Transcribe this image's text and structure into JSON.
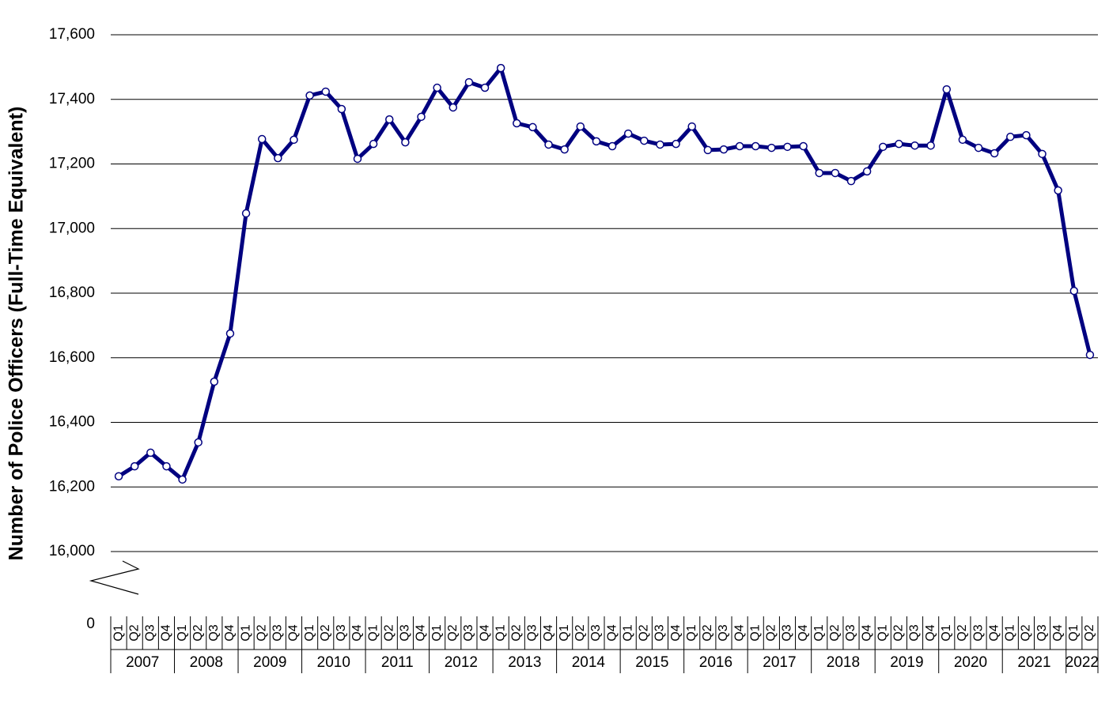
{
  "chart_data": {
    "type": "line",
    "y_label": "Number of Police Officers (Full-Time Equivalent)",
    "categories": [
      "Q1",
      "Q2",
      "Q3",
      "Q4",
      "Q1",
      "Q2",
      "Q3",
      "Q4",
      "Q1",
      "Q2",
      "Q3",
      "Q4",
      "Q1",
      "Q2",
      "Q3",
      "Q4",
      "Q1",
      "Q2",
      "Q3",
      "Q4",
      "Q1",
      "Q2",
      "Q3",
      "Q4",
      "Q1",
      "Q2",
      "Q3",
      "Q4",
      "Q1",
      "Q2",
      "Q3",
      "Q4",
      "Q1",
      "Q2",
      "Q3",
      "Q4",
      "Q1",
      "Q2",
      "Q3",
      "Q4",
      "Q1",
      "Q2",
      "Q3",
      "Q4",
      "Q1",
      "Q2",
      "Q3",
      "Q4",
      "Q1",
      "Q2",
      "Q3",
      "Q4",
      "Q1",
      "Q2",
      "Q3",
      "Q4",
      "Q1",
      "Q2",
      "Q3",
      "Q4",
      "Q1",
      "Q2"
    ],
    "years": [
      "2007",
      "2008",
      "2009",
      "2010",
      "2011",
      "2012",
      "2013",
      "2014",
      "2015",
      "2016",
      "2017",
      "2018",
      "2019",
      "2020",
      "2021",
      "2022"
    ],
    "color": "#000080",
    "values": [
      16233,
      16264,
      16306,
      16264,
      16223,
      16338,
      16526,
      16675,
      17047,
      17277,
      17218,
      17275,
      17412,
      17424,
      17370,
      17216,
      17262,
      17338,
      17267,
      17346,
      17436,
      17375,
      17453,
      17436,
      17497,
      17326,
      17314,
      17260,
      17245,
      17316,
      17270,
      17255,
      17294,
      17272,
      17260,
      17262,
      17316,
      17243,
      17245,
      17255,
      17255,
      17250,
      17253,
      17255,
      17172,
      17172,
      17147,
      17177,
      17253,
      17262,
      17257,
      17257,
      17431,
      17275,
      17250,
      17233,
      17284,
      17289,
      17231,
      17118,
      16807,
      16609
    ],
    "ylim": [
      0,
      17600
    ],
    "y_break": [
      0,
      16000
    ],
    "yticks": [
      0,
      {
        "value": 16000,
        "label": "16,000"
      },
      {
        "value": 16200,
        "label": "16,200"
      },
      {
        "value": 16400,
        "label": "16,400"
      },
      {
        "value": 16600,
        "label": "16,600"
      },
      {
        "value": 16800,
        "label": "16,800"
      },
      {
        "value": 17000,
        "label": "17,000"
      },
      {
        "value": 17200,
        "label": "17,200"
      },
      {
        "value": 17400,
        "label": "17,400"
      },
      {
        "value": 17600,
        "label": "17,600"
      }
    ],
    "grid": true
  }
}
